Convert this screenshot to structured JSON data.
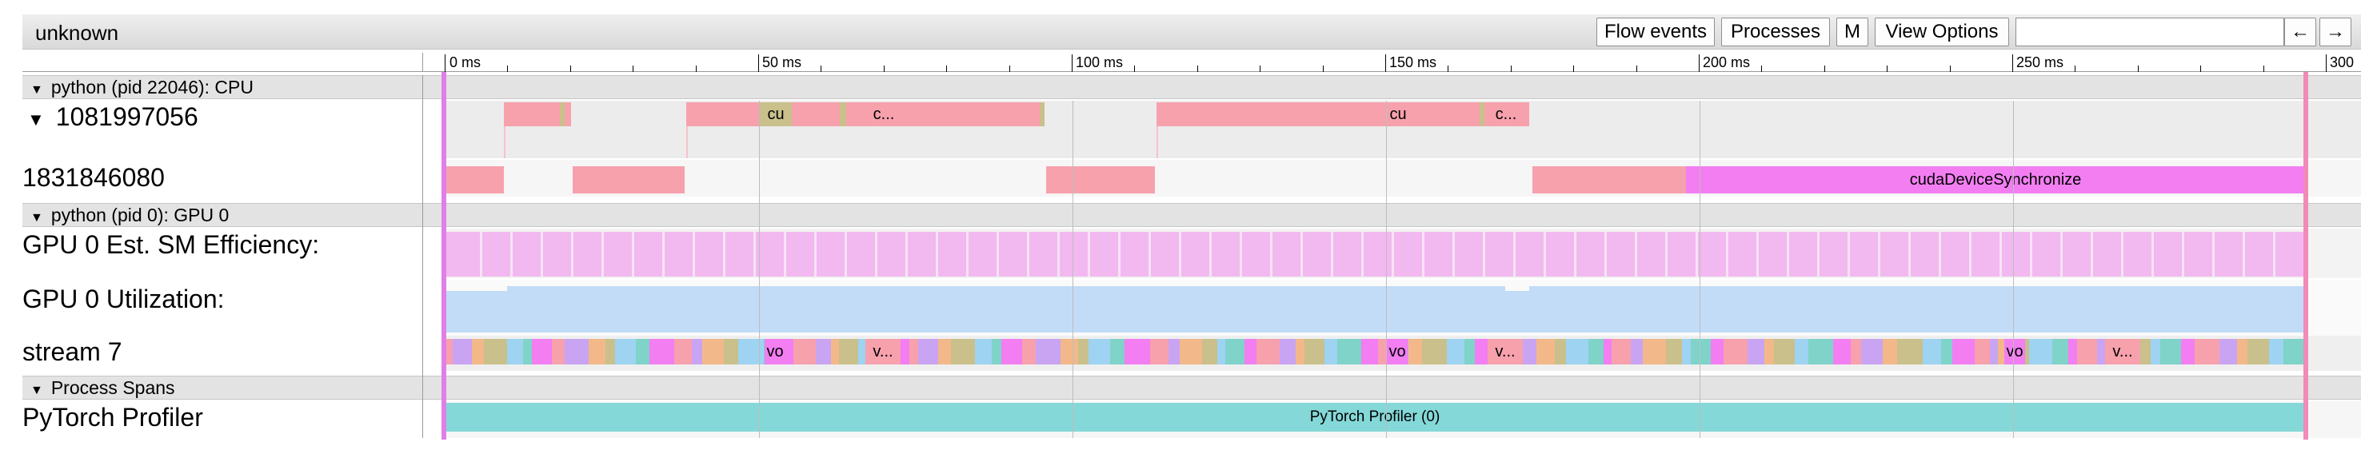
{
  "window": {
    "title": "unknown"
  },
  "toolbar": {
    "flow_events": "Flow events",
    "processes": "Processes",
    "m": "M",
    "view_options": "View Options",
    "search_value": "",
    "prev_arrow": "←",
    "next_arrow": "→"
  },
  "ruler": {
    "ticks": [
      "0 ms",
      "50 ms",
      "100 ms",
      "150 ms",
      "200 ms",
      "250 ms",
      "300"
    ]
  },
  "process_cpu": {
    "header": "python (pid 22046): CPU",
    "threads": [
      {
        "label": "1081997056",
        "expand_arrow": "▼",
        "events": [
          "cu",
          "c...",
          "cu",
          "c..."
        ]
      },
      {
        "label": "1831846080",
        "events": [
          "cudaDeviceSynchronize"
        ]
      }
    ]
  },
  "process_gpu": {
    "header": "python (pid 0): GPU 0",
    "counters": [
      {
        "label": "GPU 0 Est. SM Efficiency:"
      },
      {
        "label": "GPU 0 Utilization:"
      }
    ],
    "stream": {
      "label": "stream 7",
      "events": [
        "vo",
        "v...",
        "vo",
        "v...",
        "vo",
        "v..."
      ]
    }
  },
  "process_spans": {
    "header": "Process Spans",
    "track_label": "PyTorch Profiler",
    "span_label": "PyTorch Profiler (0)"
  },
  "colors": {
    "pink": "#f7a1ad",
    "olive": "#c9c08b",
    "magenta": "#f27ef2",
    "sm_eff": "#f2b8f0",
    "utilization": "#c2dcf7",
    "span": "#85d8d8",
    "range_marker": "#e07fe6"
  }
}
